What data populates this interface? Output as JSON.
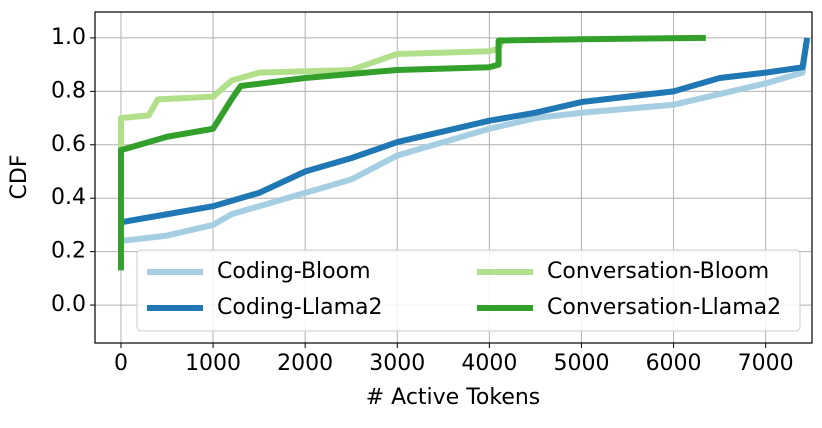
{
  "chart_data": {
    "type": "line",
    "xlabel": "# Active Tokens",
    "ylabel": "CDF",
    "xlim": [
      -282,
      7503
    ],
    "ylim": [
      -0.142,
      1.097
    ],
    "xticks": [
      0,
      1000,
      2000,
      3000,
      4000,
      5000,
      6000,
      7000
    ],
    "yticks": [
      {
        "value": 0,
        "label": "0.0"
      },
      0.2,
      0.4,
      0.6,
      0.8,
      {
        "value": 1,
        "label": "1.0"
      }
    ],
    "grid": true,
    "legend": "lower right",
    "series": [
      {
        "name": "Coding-Bloom",
        "color": "#a6cee3",
        "x": [
          0,
          500,
          1000,
          1200,
          2000,
          2500,
          3000,
          3500,
          4000,
          4500,
          5000,
          6000,
          6500,
          7000,
          7400,
          7450
        ],
        "values": [
          0.24,
          0.26,
          0.3,
          0.34,
          0.42,
          0.47,
          0.56,
          0.61,
          0.66,
          0.7,
          0.72,
          0.75,
          0.79,
          0.83,
          0.87,
          1.0
        ]
      },
      {
        "name": "Coding-Llama2",
        "color": "#1f78b4",
        "x": [
          0,
          500,
          1000,
          1500,
          2000,
          2500,
          3000,
          3500,
          4000,
          4500,
          5000,
          6000,
          6500,
          7000,
          7400,
          7450
        ],
        "values": [
          0.31,
          0.34,
          0.37,
          0.42,
          0.5,
          0.55,
          0.61,
          0.65,
          0.69,
          0.72,
          0.76,
          0.8,
          0.85,
          0.87,
          0.89,
          1.0
        ]
      },
      {
        "name": "Conversation-Bloom",
        "color": "#b2df8a",
        "x": [
          0,
          0,
          300,
          400,
          1000,
          1200,
          1500,
          2500,
          3000,
          4000,
          4100,
          4150
        ],
        "values": [
          0.57,
          0.7,
          0.71,
          0.77,
          0.78,
          0.84,
          0.87,
          0.88,
          0.94,
          0.95,
          0.96,
          1.0
        ]
      },
      {
        "name": "Conversation-Llama2",
        "color": "#33a02c",
        "x": [
          0,
          0,
          500,
          1000,
          1200,
          1300,
          2000,
          3000,
          4000,
          4100,
          4100,
          5000,
          6350
        ],
        "values": [
          0.13,
          0.58,
          0.63,
          0.66,
          0.77,
          0.82,
          0.85,
          0.88,
          0.89,
          0.9,
          0.99,
          0.995,
          1.0
        ]
      }
    ]
  }
}
